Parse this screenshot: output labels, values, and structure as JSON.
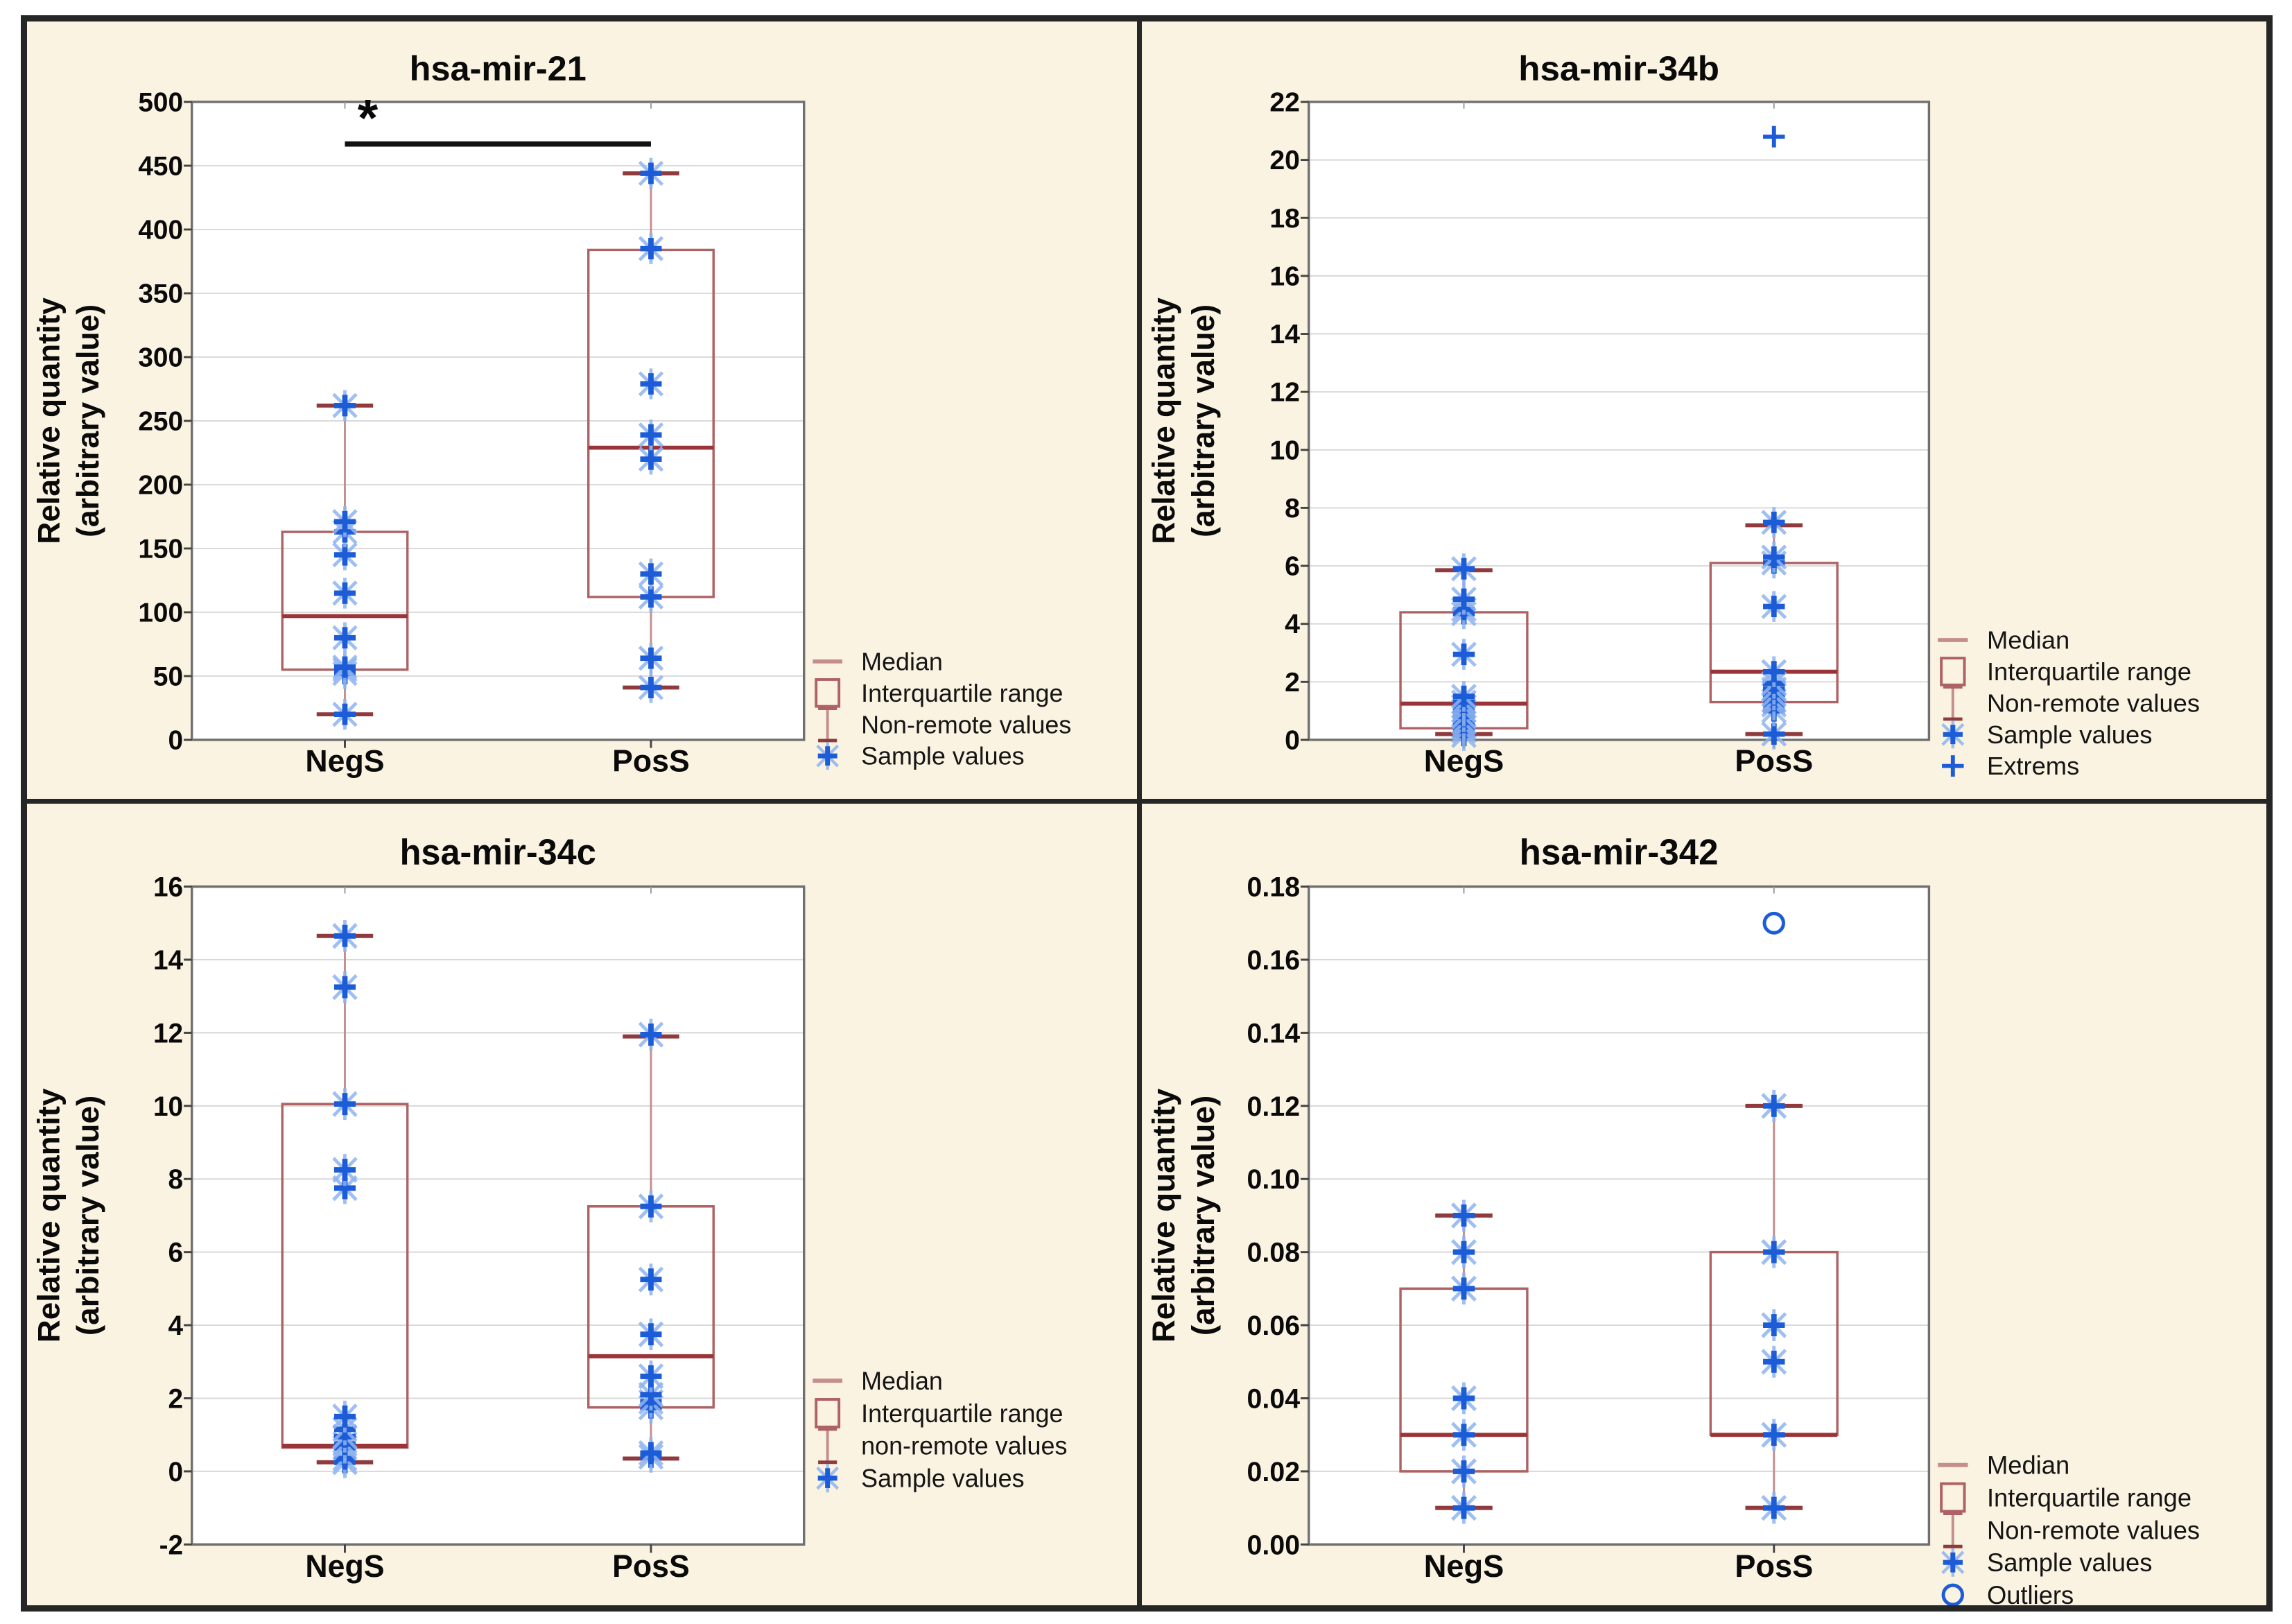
{
  "page": {
    "background": "#ffffff",
    "frame_color": "#262626",
    "panel_background": "#faf3e2",
    "plot_background": "#ffffff",
    "gridline_color": "#d8d8d8",
    "plot_border_color": "#6f6f6f",
    "box_color": "#ae6264",
    "median_color": "#9b3438",
    "whisker_line_color": "#c48e8e",
    "whisker_cap_color": "#8f3a3c",
    "sample_core_color": "#1c5cd6",
    "sample_halo_color": "#8fb4f0",
    "text_color": "#0a0a0a",
    "significance_color": "#111111"
  },
  "chart_data": [
    {
      "type": "box",
      "title": "hsa-mir-21",
      "ylabel_line1": "Relative quantity",
      "ylabel_line2": "(arbitrary value)",
      "y_min": 0,
      "y_max": 500,
      "y_ticks": [
        0,
        50,
        100,
        150,
        200,
        250,
        300,
        350,
        400,
        450,
        500
      ],
      "y_tick_labels": [
        "0",
        "50",
        "100",
        "150",
        "200",
        "250",
        "300",
        "350",
        "400",
        "450",
        "500"
      ],
      "categories": [
        "NegS",
        "PosS"
      ],
      "grid": true,
      "legend_position": "bottom-right",
      "boxes": [
        {
          "category": "NegS",
          "q1": 55,
          "median": 97,
          "q3": 163,
          "whisker_low": 20,
          "whisker_high": 262,
          "samples": [
            20,
            52,
            55,
            57,
            80,
            115,
            145,
            163,
            171,
            262
          ],
          "extremes": [],
          "outliers": []
        },
        {
          "category": "PosS",
          "q1": 112,
          "median": 229,
          "q3": 384,
          "whisker_low": 41,
          "whisker_high": 444,
          "samples": [
            41,
            64,
            112,
            130,
            220,
            239,
            279,
            385,
            444
          ],
          "extremes": [],
          "outliers": []
        }
      ],
      "significance": {
        "show": true,
        "label": "*",
        "y_value": 467
      },
      "legend": [
        {
          "marker": "median",
          "label": "Median"
        },
        {
          "marker": "iqr",
          "label": "Interquartile range"
        },
        {
          "marker": "whisker",
          "label": "Non-remote values"
        },
        {
          "marker": "sample",
          "label": "Sample values"
        }
      ]
    },
    {
      "type": "box",
      "title": "hsa-mir-34b",
      "ylabel_line1": "Relative quantity",
      "ylabel_line2": "(arbitrary value)",
      "y_min": 0,
      "y_max": 22,
      "y_ticks": [
        0,
        2,
        4,
        6,
        8,
        10,
        12,
        14,
        16,
        18,
        20,
        22
      ],
      "y_tick_labels": [
        "0",
        "2",
        "4",
        "6",
        "8",
        "10",
        "12",
        "14",
        "16",
        "18",
        "20",
        "22"
      ],
      "categories": [
        "NegS",
        "PosS"
      ],
      "grid": true,
      "legend_position": "bottom-right",
      "boxes": [
        {
          "category": "NegS",
          "q1": 0.4,
          "median": 1.25,
          "q3": 4.4,
          "whisker_low": 0.2,
          "whisker_high": 5.85,
          "samples": [
            0.15,
            0.3,
            0.45,
            0.6,
            0.8,
            1.0,
            1.15,
            1.3,
            1.5,
            2.95,
            4.35,
            4.5,
            4.85,
            5.9
          ],
          "extremes": [],
          "outliers": []
        },
        {
          "category": "PosS",
          "q1": 1.3,
          "median": 2.35,
          "q3": 6.1,
          "whisker_low": 0.2,
          "whisker_high": 7.4,
          "samples": [
            0.2,
            1.0,
            1.2,
            1.35,
            1.55,
            1.75,
            1.95,
            2.35,
            4.6,
            6.1,
            6.3,
            7.5
          ],
          "extremes": [
            20.8
          ],
          "outliers": []
        }
      ],
      "significance": {
        "show": false,
        "label": "",
        "y_value": 0
      },
      "legend": [
        {
          "marker": "median",
          "label": "Median"
        },
        {
          "marker": "iqr",
          "label": "Interquartile range"
        },
        {
          "marker": "whisker",
          "label": "Non-remote values"
        },
        {
          "marker": "sample",
          "label": "Sample values"
        },
        {
          "marker": "extreme",
          "label": "Extrems"
        }
      ]
    },
    {
      "type": "box",
      "title": "hsa-mir-34c",
      "ylabel_line1": "Relative quantity",
      "ylabel_line2": "(arbitrary value)",
      "y_min": -2,
      "y_max": 16,
      "y_ticks": [
        -2,
        0,
        2,
        4,
        6,
        8,
        10,
        12,
        14,
        16
      ],
      "y_tick_labels": [
        "-2",
        "0",
        "2",
        "4",
        "6",
        "8",
        "10",
        "12",
        "14",
        "16"
      ],
      "categories": [
        "NegS",
        "PosS"
      ],
      "grid": true,
      "legend_position": "bottom-right",
      "boxes": [
        {
          "category": "NegS",
          "q1": 0.65,
          "median": 0.7,
          "q3": 10.05,
          "whisker_low": 0.25,
          "whisker_high": 14.65,
          "samples": [
            0.25,
            0.35,
            0.65,
            0.75,
            0.95,
            1.15,
            1.5,
            7.75,
            8.25,
            10.05,
            13.25,
            14.65
          ],
          "extremes": [],
          "outliers": []
        },
        {
          "category": "PosS",
          "q1": 1.75,
          "median": 3.15,
          "q3": 7.25,
          "whisker_low": 0.35,
          "whisker_high": 11.9,
          "samples": [
            0.4,
            0.5,
            1.75,
            1.9,
            2.1,
            2.6,
            3.75,
            5.25,
            7.25,
            11.95
          ],
          "extremes": [],
          "outliers": []
        }
      ],
      "significance": {
        "show": false,
        "label": "",
        "y_value": 0
      },
      "legend": [
        {
          "marker": "median",
          "label": "Median"
        },
        {
          "marker": "iqr",
          "label": "Interquartile range"
        },
        {
          "marker": "whisker",
          "label": "non-remote values"
        },
        {
          "marker": "sample",
          "label": "Sample values"
        }
      ]
    },
    {
      "type": "box",
      "title": "hsa-mir-342",
      "ylabel_line1": "Relative quantity",
      "ylabel_line2": "(arbitrary value)",
      "y_min": 0,
      "y_max": 0.18,
      "y_ticks": [
        0,
        0.02,
        0.04,
        0.06,
        0.08,
        0.1,
        0.12,
        0.14,
        0.16,
        0.18
      ],
      "y_tick_labels": [
        "0.00",
        "0.02",
        "0.04",
        "0.06",
        "0.08",
        "0.10",
        "0.12",
        "0.14",
        "0.16",
        "0.18"
      ],
      "categories": [
        "NegS",
        "PosS"
      ],
      "grid": true,
      "legend_position": "bottom-right",
      "boxes": [
        {
          "category": "NegS",
          "q1": 0.02,
          "median": 0.03,
          "q3": 0.07,
          "whisker_low": 0.01,
          "whisker_high": 0.09,
          "samples": [
            0.01,
            0.02,
            0.03,
            0.04,
            0.07,
            0.08,
            0.09
          ],
          "extremes": [],
          "outliers": []
        },
        {
          "category": "PosS",
          "q1": 0.03,
          "median": 0.03,
          "q3": 0.08,
          "whisker_low": 0.01,
          "whisker_high": 0.12,
          "samples": [
            0.01,
            0.03,
            0.05,
            0.06,
            0.08,
            0.12
          ],
          "extremes": [],
          "outliers": [
            0.17
          ]
        }
      ],
      "significance": {
        "show": false,
        "label": "",
        "y_value": 0
      },
      "legend": [
        {
          "marker": "median",
          "label": "Median"
        },
        {
          "marker": "iqr",
          "label": "Interquartile range"
        },
        {
          "marker": "whisker",
          "label": "Non-remote values"
        },
        {
          "marker": "sample",
          "label": "Sample values"
        },
        {
          "marker": "outlier",
          "label": "Outliers"
        }
      ]
    }
  ]
}
